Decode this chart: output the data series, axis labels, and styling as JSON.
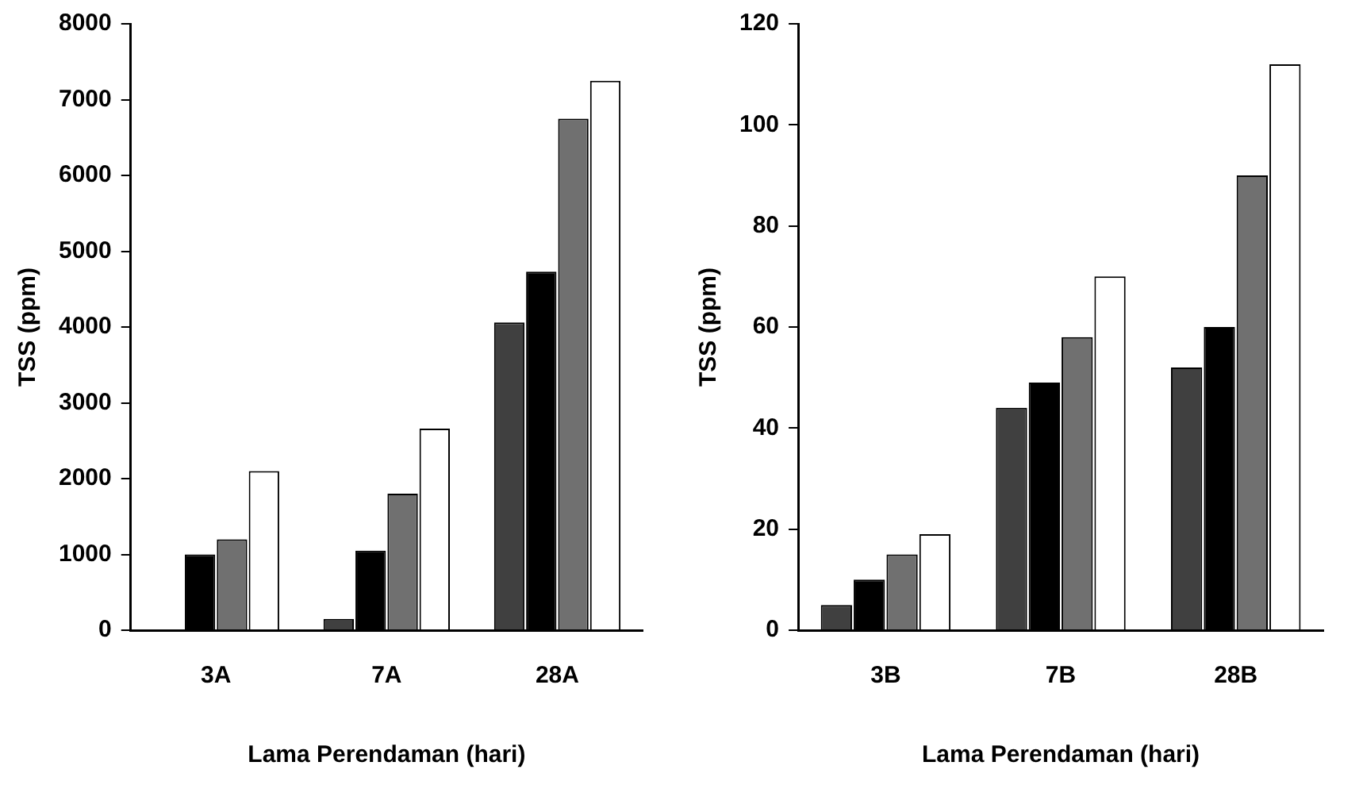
{
  "chart_data": [
    {
      "type": "bar",
      "categories": [
        "3A",
        "7A",
        "28A"
      ],
      "xlabel": "Lama Perendaman (hari)",
      "ylabel": "TSS (ppm)",
      "ylim": [
        0,
        8000
      ],
      "yticks": [
        0,
        1000,
        2000,
        3000,
        4000,
        5000,
        6000,
        7000,
        8000
      ],
      "grid": false,
      "legend": false,
      "series": [
        {
          "color": "#404040",
          "values": [
            null,
            150,
            4060
          ]
        },
        {
          "color": "#000000",
          "values": [
            1000,
            1050,
            4730
          ]
        },
        {
          "color": "#707070",
          "values": [
            1200,
            1800,
            6750
          ]
        },
        {
          "color": "#ffffff",
          "values": [
            2100,
            2660,
            7250
          ]
        }
      ]
    },
    {
      "type": "bar",
      "categories": [
        "3B",
        "7B",
        "28B"
      ],
      "xlabel": "Lama Perendaman (hari)",
      "ylabel": "TSS (ppm)",
      "ylim": [
        0,
        120
      ],
      "yticks": [
        0,
        20,
        40,
        60,
        80,
        100,
        120
      ],
      "grid": false,
      "legend": false,
      "series": [
        {
          "color": "#404040",
          "values": [
            5,
            44,
            52
          ]
        },
        {
          "color": "#000000",
          "values": [
            10,
            49,
            60
          ]
        },
        {
          "color": "#707070",
          "values": [
            15,
            58,
            90
          ]
        },
        {
          "color": "#ffffff",
          "values": [
            19,
            70,
            112
          ]
        }
      ]
    }
  ]
}
